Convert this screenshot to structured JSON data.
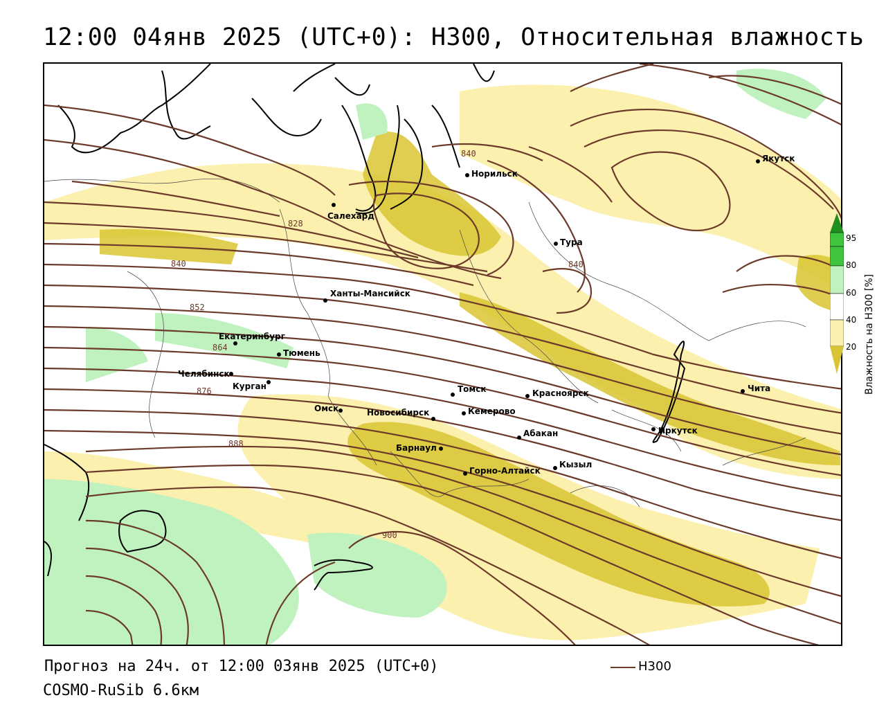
{
  "title": "12:00 04янв 2025 (UTC+0): H300, Относительная влажность",
  "footer": {
    "forecast": "Прогноз на 24ч. от 12:00 03янв 2025 (UTC+0)",
    "model": "COSMO-RuSib 6.6км"
  },
  "legend": {
    "line_label": "H300",
    "line_color": "#6b3a2a"
  },
  "colorbar": {
    "title": "Влажность на H300 [%]",
    "ticks": [
      "95",
      "80",
      "60",
      "40",
      "20"
    ],
    "colors": {
      "c95": "#1f8f1f",
      "c80": "#3fc43f",
      "c60": "#bff2bf",
      "c40": "#ffffff",
      "c20_light": "#fbf0ad",
      "c20_dark": "#d9c533"
    }
  },
  "cities": [
    {
      "name": "Якутск"
    },
    {
      "name": "Норильск"
    },
    {
      "name": "Салехард"
    },
    {
      "name": "Тура"
    },
    {
      "name": "Ханты-Мансийск"
    },
    {
      "name": "Екатеринбург"
    },
    {
      "name": "Тюмень"
    },
    {
      "name": "Челябинск"
    },
    {
      "name": "Курган"
    },
    {
      "name": "Омск"
    },
    {
      "name": "Новосибирск"
    },
    {
      "name": "Томск"
    },
    {
      "name": "Кемерово"
    },
    {
      "name": "Красноярск"
    },
    {
      "name": "Абакан"
    },
    {
      "name": "Барнаул"
    },
    {
      "name": "Горно-Алтайск"
    },
    {
      "name": "Кызыл"
    },
    {
      "name": "Иркутск"
    },
    {
      "name": "Чита"
    }
  ],
  "contour_labels": [
    "840",
    "828",
    "840",
    "840",
    "852",
    "864",
    "876",
    "888",
    "900"
  ]
}
